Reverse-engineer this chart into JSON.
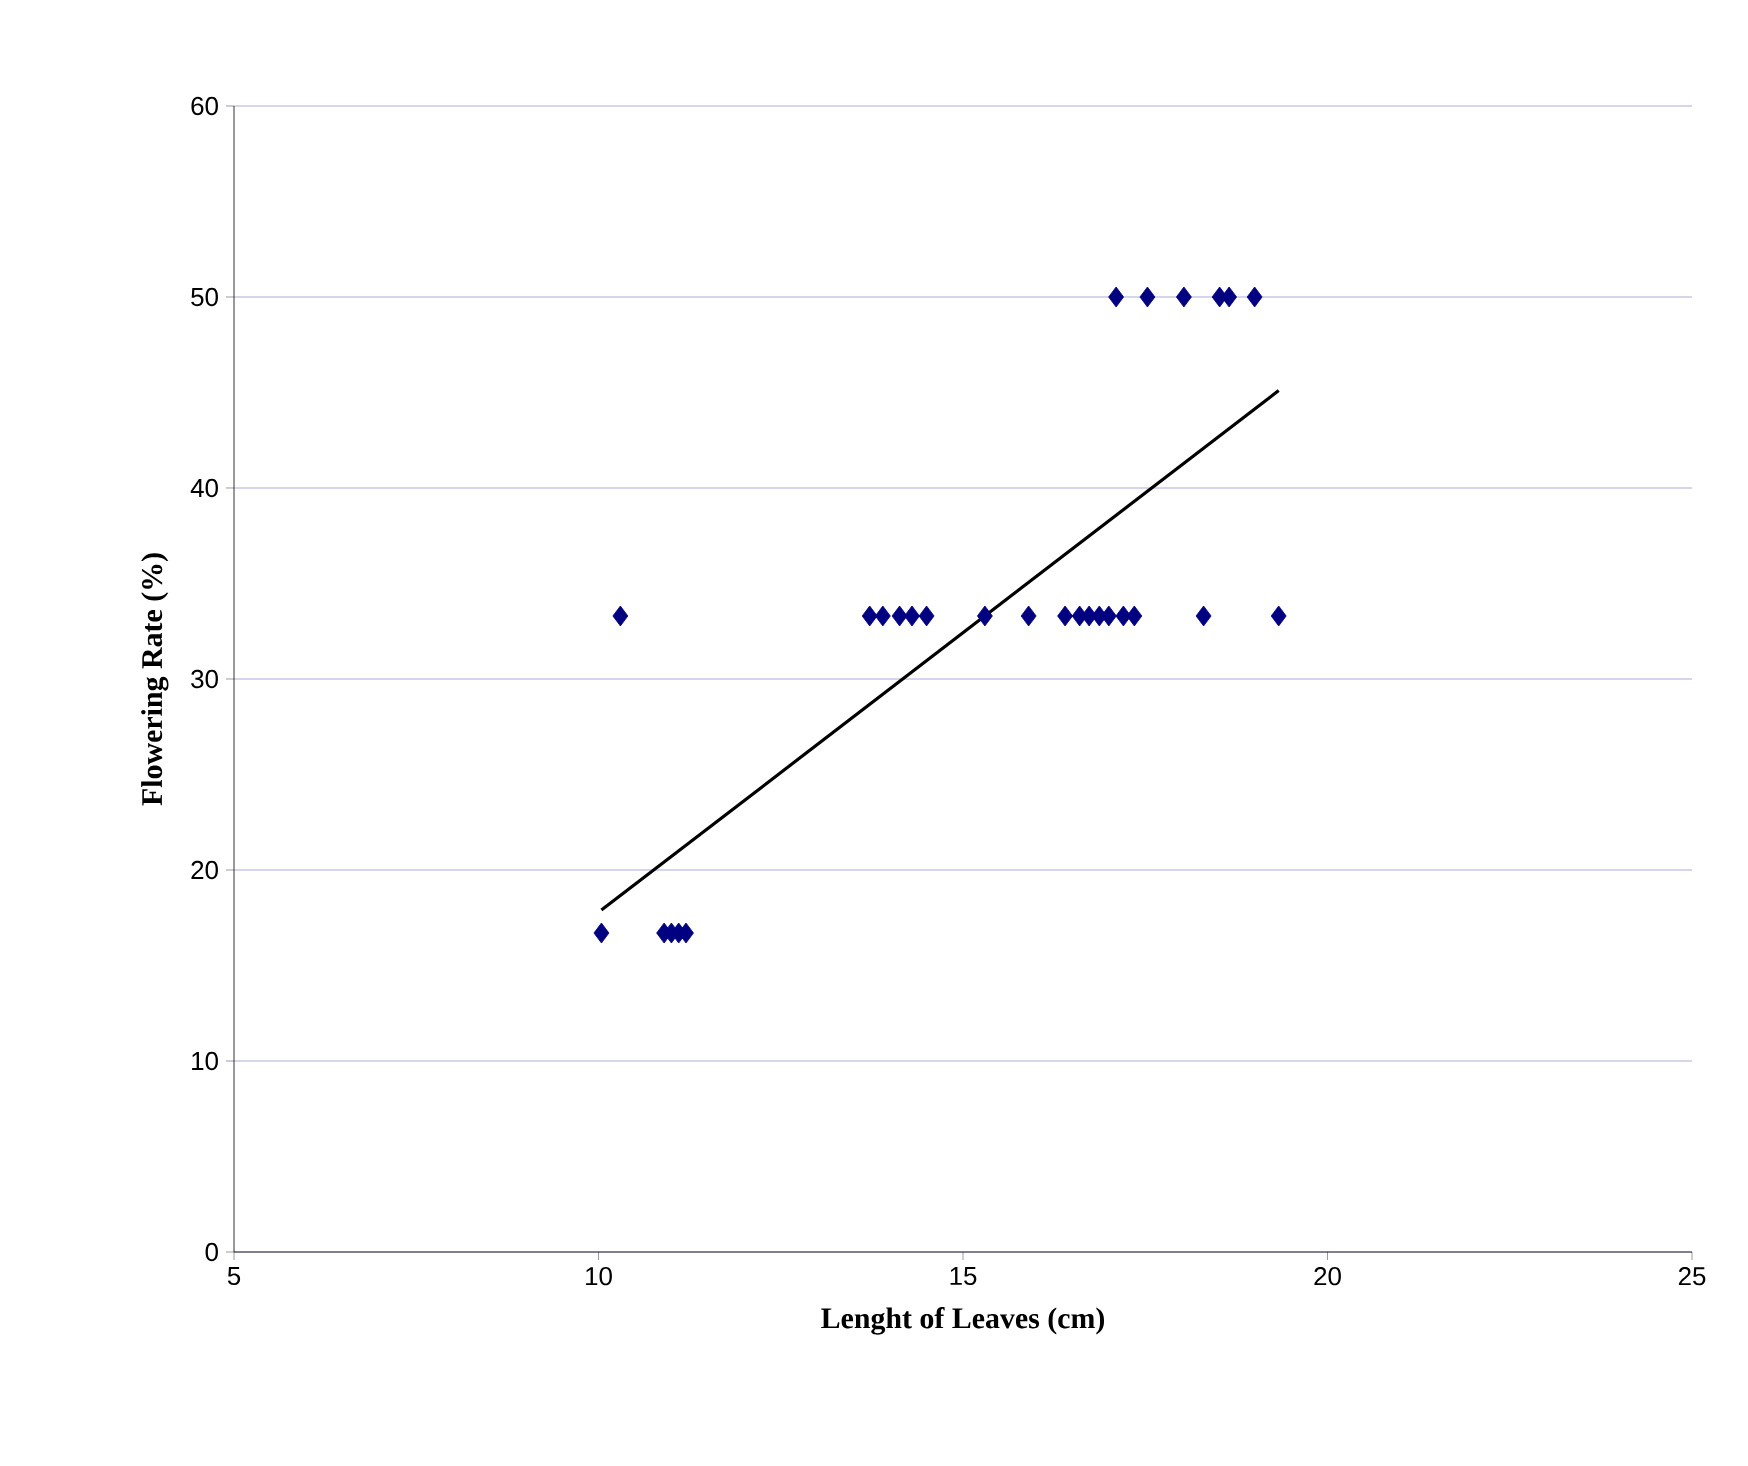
{
  "chart_data": {
    "type": "scatter",
    "xlabel": "Lenght of Leaves (cm)",
    "ylabel": "Flowering Rate (%)",
    "xlim": [
      5,
      25
    ],
    "xticks": [
      5,
      10,
      15,
      20,
      25
    ],
    "ylim": [
      0,
      60
    ],
    "yticks": [
      0,
      10,
      20,
      30,
      40,
      50,
      60
    ],
    "grid": "y",
    "marker": "diamond",
    "series": [
      {
        "color": "#000080",
        "x": [
          10.04,
          10.9,
          11.0,
          11.1,
          11.2,
          10.3,
          13.72,
          13.9,
          14.13,
          14.3,
          14.5,
          15.3,
          15.9,
          16.4,
          16.6,
          16.73,
          16.87,
          17.0,
          17.2,
          17.35,
          18.3,
          19.33,
          17.1,
          17.53,
          18.03,
          18.52,
          18.65,
          19.0
        ],
        "values": [
          16.7,
          16.7,
          16.7,
          16.7,
          16.7,
          33.3,
          33.3,
          33.3,
          33.3,
          33.3,
          33.3,
          33.3,
          33.3,
          33.3,
          33.3,
          33.3,
          33.3,
          33.3,
          33.3,
          33.3,
          33.3,
          33.3,
          50,
          50,
          50,
          50,
          50,
          50
        ]
      },
      {
        "type": "line",
        "color": "#000000",
        "marker": "none",
        "x": [
          10.04,
          19.33
        ],
        "values": [
          17.9,
          45.1
        ]
      }
    ]
  }
}
